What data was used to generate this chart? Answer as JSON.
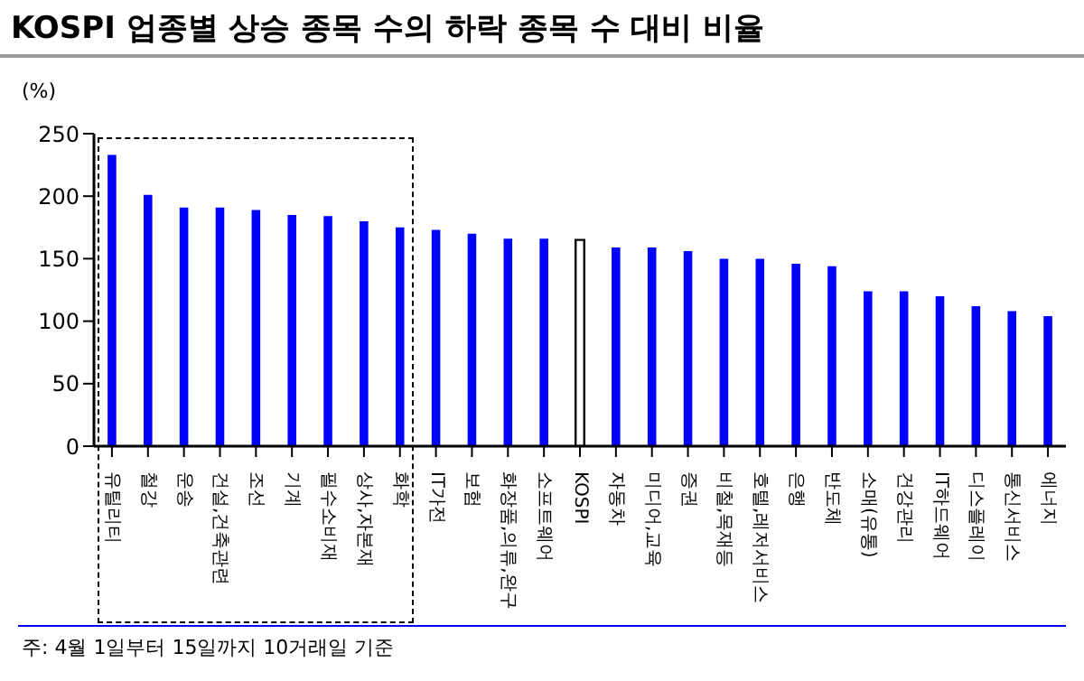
{
  "chart_data": {
    "type": "bar",
    "title": "KOSPI 업종별 상승 종목 수의 하락 종목 수 대비 비율",
    "ylabel": "(%)",
    "categories": [
      "유틸리티",
      "철강",
      "운송",
      "건설,건축관련",
      "조선",
      "기계",
      "필수소비재",
      "상사,자본재",
      "화학",
      "IT가전",
      "보험",
      "화장품,의류,완구",
      "소프트웨어",
      "KOSPI",
      "자동차",
      "미디어,교육",
      "증권",
      "비철,목재등",
      "호텔,레저서비스",
      "은행",
      "반도체",
      "소매(유통)",
      "건강관리",
      "IT하드웨어",
      "디스플레이",
      "통신서비스",
      "에너지"
    ],
    "values": [
      233,
      201,
      191,
      191,
      189,
      185,
      184,
      180,
      175,
      173,
      170,
      166,
      166,
      165,
      159,
      159,
      156,
      150,
      150,
      146,
      144,
      124,
      124,
      120,
      112,
      108,
      104
    ],
    "colors": [
      "#0000ff",
      "#0000ff",
      "#0000ff",
      "#0000ff",
      "#0000ff",
      "#0000ff",
      "#0000ff",
      "#0000ff",
      "#0000ff",
      "#0000ff",
      "#0000ff",
      "#0000ff",
      "#0000ff",
      "#ffffff",
      "#0000ff",
      "#0000ff",
      "#0000ff",
      "#0000ff",
      "#0000ff",
      "#0000ff",
      "#0000ff",
      "#0000ff",
      "#0000ff",
      "#0000ff",
      "#0000ff",
      "#0000ff",
      "#0000ff"
    ],
    "ylim": [
      0,
      250
    ],
    "yticks": [
      0,
      50,
      100,
      150,
      200,
      250
    ],
    "grid": false,
    "annotations": [
      "주: 4월 1일부터 15일까지 10거래일 기준"
    ]
  }
}
